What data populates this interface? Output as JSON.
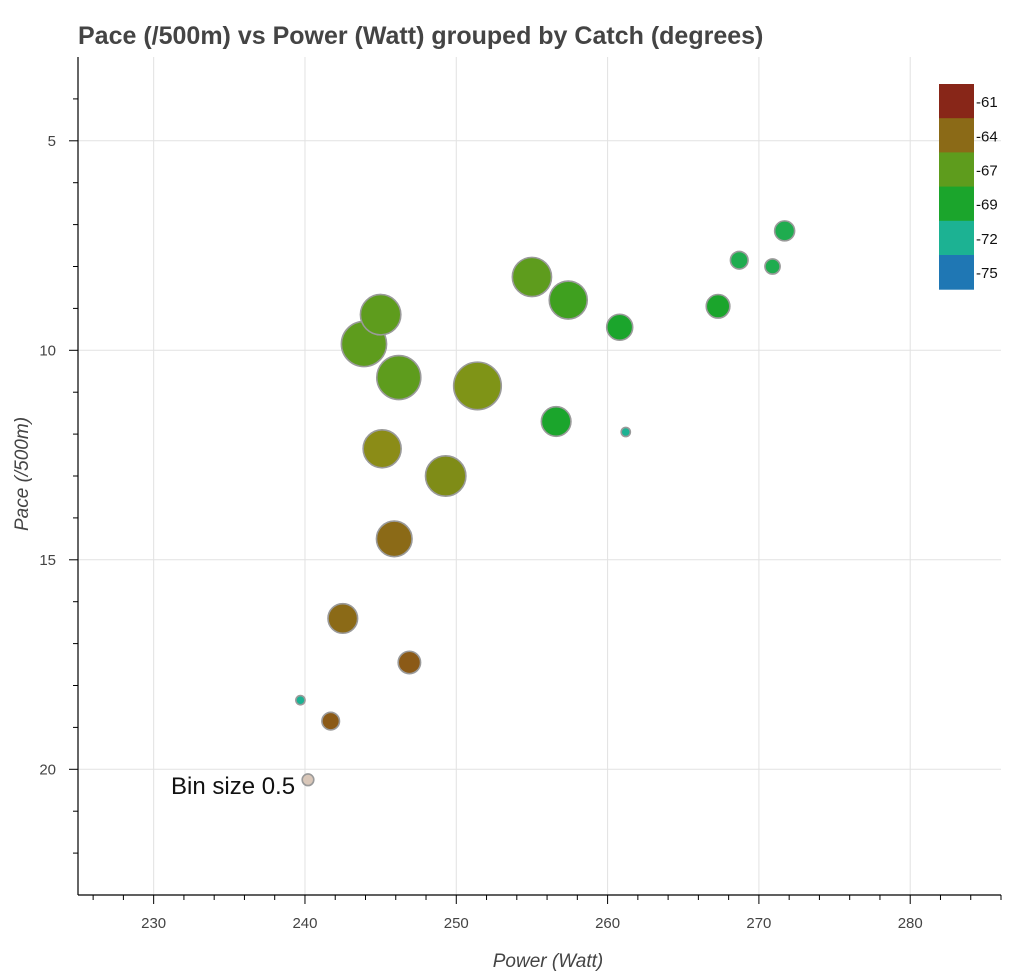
{
  "chart_data": {
    "type": "scatter",
    "title": "Pace (/500m) vs Power (Watt) grouped by Catch (degrees)",
    "xlabel": "Power (Watt)",
    "ylabel": "Pace (/500m)",
    "xlim": [
      225,
      286
    ],
    "ylim": [
      23,
      3
    ],
    "y_inverted": true,
    "x_ticks": [
      230,
      240,
      250,
      260,
      270,
      280
    ],
    "y_ticks": [
      5,
      10,
      15,
      20
    ],
    "grid": true,
    "legend_placement": "top-right",
    "legend": [
      {
        "label": "-61",
        "color": "#882618"
      },
      {
        "label": "-64",
        "color": "#8b6a17"
      },
      {
        "label": "-67",
        "color": "#5e9c1d"
      },
      {
        "label": "-69",
        "color": "#1ba52c"
      },
      {
        "label": "-72",
        "color": "#1cb293"
      },
      {
        "label": "-75",
        "color": "#1f77b4"
      }
    ],
    "annotation": "Bin size 0.5",
    "points": [
      {
        "x": 240.2,
        "y": 20.25,
        "size": 0.8,
        "color": "#d9c7b9"
      },
      {
        "x": 239.7,
        "y": 18.35,
        "size": 0.6,
        "color": "#1cb293"
      },
      {
        "x": 241.7,
        "y": 18.85,
        "size": 1.3,
        "color": "#8b5a17"
      },
      {
        "x": 246.9,
        "y": 17.45,
        "size": 1.7,
        "color": "#8b5a17"
      },
      {
        "x": 242.5,
        "y": 16.4,
        "size": 2.3,
        "color": "#8b6a17"
      },
      {
        "x": 245.9,
        "y": 14.5,
        "size": 2.8,
        "color": "#8b6a17"
      },
      {
        "x": 249.3,
        "y": 13.0,
        "size": 3.2,
        "color": "#7f8c17"
      },
      {
        "x": 245.1,
        "y": 12.35,
        "size": 3.0,
        "color": "#8b8c17"
      },
      {
        "x": 251.4,
        "y": 10.85,
        "size": 3.8,
        "color": "#7f9417"
      },
      {
        "x": 246.2,
        "y": 10.65,
        "size": 3.5,
        "color": "#5e9c1d"
      },
      {
        "x": 243.9,
        "y": 9.85,
        "size": 3.6,
        "color": "#5e9c1d"
      },
      {
        "x": 245.0,
        "y": 9.15,
        "size": 3.2,
        "color": "#5e9c1d"
      },
      {
        "x": 255.0,
        "y": 8.25,
        "size": 3.1,
        "color": "#5e9c1d"
      },
      {
        "x": 257.4,
        "y": 8.8,
        "size": 3.0,
        "color": "#3fa01f"
      },
      {
        "x": 256.6,
        "y": 11.7,
        "size": 2.3,
        "color": "#1ba52c"
      },
      {
        "x": 260.8,
        "y": 9.45,
        "size": 2.0,
        "color": "#1ba52c"
      },
      {
        "x": 261.2,
        "y": 11.95,
        "size": 0.6,
        "color": "#1cb293"
      },
      {
        "x": 267.3,
        "y": 8.95,
        "size": 1.8,
        "color": "#1ba52c"
      },
      {
        "x": 268.7,
        "y": 7.85,
        "size": 1.3,
        "color": "#1fac4f"
      },
      {
        "x": 270.9,
        "y": 8.0,
        "size": 1.1,
        "color": "#1fac4f"
      },
      {
        "x": 271.7,
        "y": 7.15,
        "size": 1.5,
        "color": "#1fac4f"
      }
    ]
  }
}
